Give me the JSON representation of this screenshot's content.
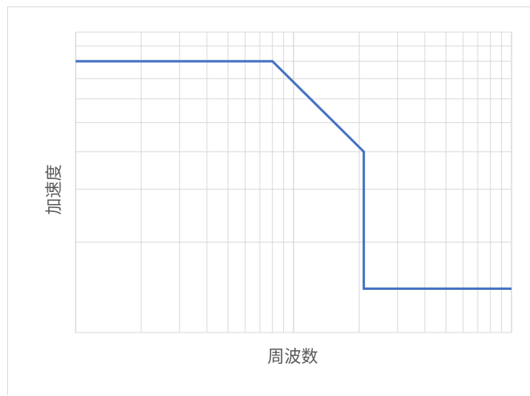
{
  "chart_data": {
    "type": "line",
    "title": "",
    "xlabel": "周波数",
    "ylabel": "加速度",
    "x_scale": "log",
    "y_scale": "log",
    "grid": true,
    "legend": "none",
    "line_color": "#4472c4",
    "grid_color": "#d9d9d9",
    "xlim": [
      1,
      100
    ],
    "ylim": [
      1,
      10
    ],
    "series": [
      {
        "style": "step",
        "x": [
          1,
          8,
          21,
          21,
          100
        ],
        "y": [
          8,
          8,
          4,
          1.4,
          1.4
        ],
        "points": [
          {
            "x": 1,
            "y": 8
          },
          {
            "x": 8,
            "y": 8
          },
          {
            "x": 8,
            "y": 4
          },
          {
            "x": 21,
            "y": 4
          },
          {
            "x": 21,
            "y": 1.4
          },
          {
            "x": 100,
            "y": 1.4
          }
        ]
      }
    ]
  }
}
